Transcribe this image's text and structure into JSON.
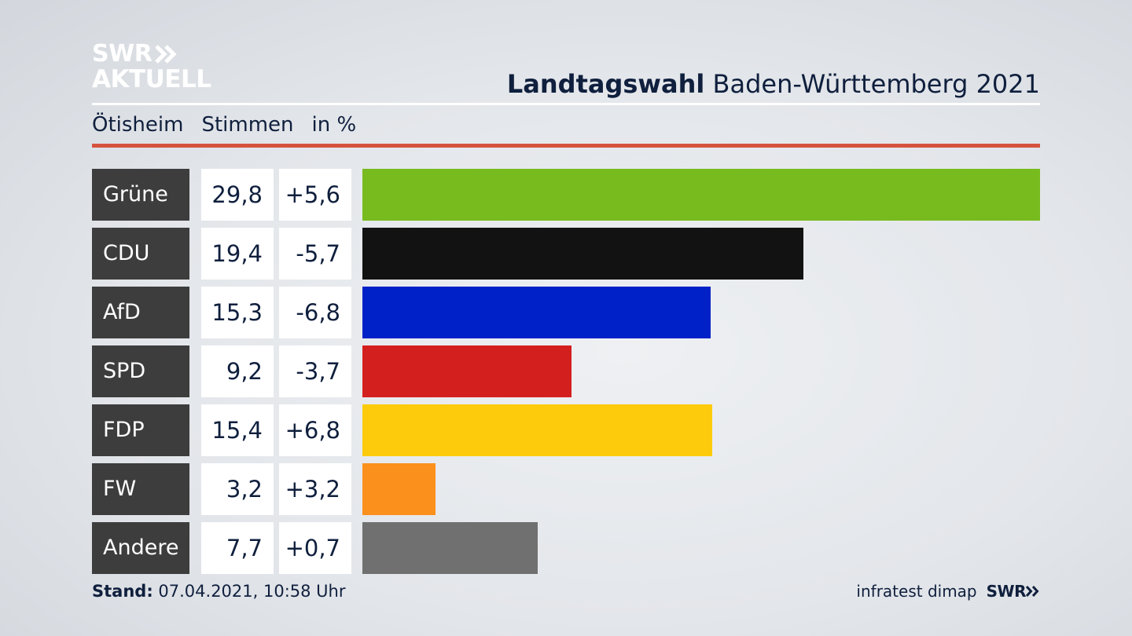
{
  "brand": {
    "line1": "SWR",
    "line2": "AKTUELL"
  },
  "header": {
    "title_bold": "Landtagswahl",
    "title_rest": " Baden-Württemberg 2021"
  },
  "subheader": {
    "place": "Ötisheim",
    "metric": "Stimmen",
    "unit": "in %"
  },
  "footer": {
    "stand_label": "Stand:",
    "stand_value": " 07.04.2021, 10:58 Uhr",
    "source": "infratest dimap",
    "swr": "SWR"
  },
  "colors": {
    "Grüne": "#77bb1f",
    "CDU": "#121212",
    "AfD": "#0021c8",
    "SPD": "#d41f1f",
    "FDP": "#fdcb0b",
    "FW": "#fb901c",
    "Andere": "#707070",
    "accent_rule": "#d5533e"
  },
  "chart_data": {
    "type": "bar",
    "categories": [
      "Grüne",
      "CDU",
      "AfD",
      "SPD",
      "FDP",
      "FW",
      "Andere"
    ],
    "values": [
      29.8,
      19.4,
      15.3,
      9.2,
      15.4,
      3.2,
      7.7
    ],
    "values_label": [
      "29,8",
      "19,4",
      "15,3",
      "9,2",
      "15,4",
      "3,2",
      "7,7"
    ],
    "diff": [
      5.6,
      -5.7,
      -6.8,
      -3.7,
      6.8,
      3.2,
      0.7
    ],
    "diff_label": [
      "+5,6",
      "-5,7",
      "-6,8",
      "-3,7",
      "+6,8",
      "+3,2",
      "+0,7"
    ],
    "title": "Landtagswahl Baden-Württemberg 2021",
    "xlabel": "",
    "ylabel": "",
    "orientation": "horizontal"
  }
}
